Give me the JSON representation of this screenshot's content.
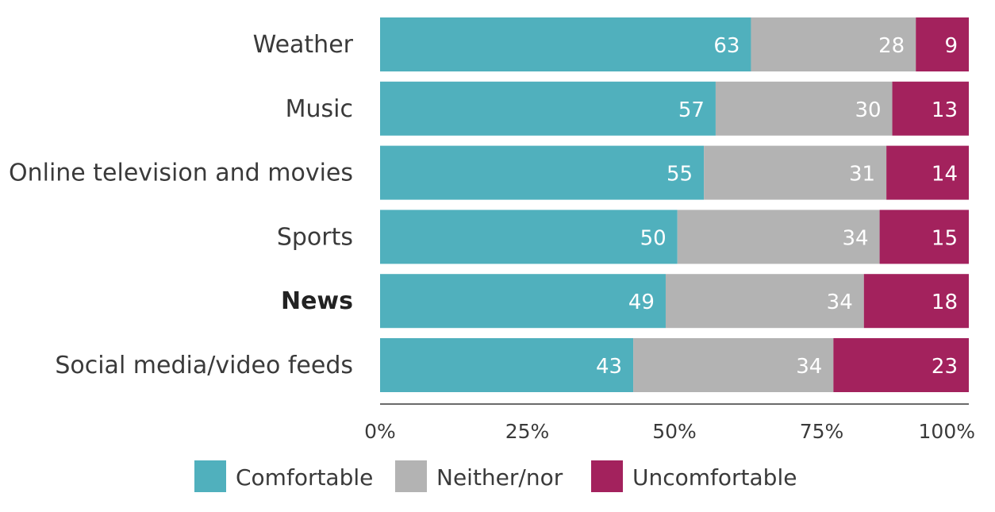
{
  "chart_data": {
    "type": "bar",
    "orientation": "horizontal",
    "stacked": true,
    "title": "",
    "xlabel": "",
    "ylabel": "",
    "xlim": [
      0,
      100
    ],
    "categories": [
      "Weather",
      "Music",
      "Online television and movies",
      "Sports",
      "News",
      "Social media/video feeds"
    ],
    "highlighted_category": "News",
    "series": [
      {
        "name": "Comfortable",
        "color": "#50b0bd",
        "values": [
          63,
          57,
          55,
          50,
          49,
          43
        ]
      },
      {
        "name": "Neither/nor",
        "color": "#b3b3b3",
        "values": [
          28,
          30,
          31,
          34,
          34,
          34
        ]
      },
      {
        "name": "Uncomfortable",
        "color": "#a3225d",
        "values": [
          9,
          13,
          14,
          15,
          18,
          23
        ]
      }
    ],
    "x_ticks": [
      "0%",
      "25%",
      "50%",
      "75%",
      "100%"
    ],
    "x_tick_values": [
      0,
      25,
      50,
      75,
      100
    ],
    "legend_position": "bottom",
    "grid": false
  }
}
